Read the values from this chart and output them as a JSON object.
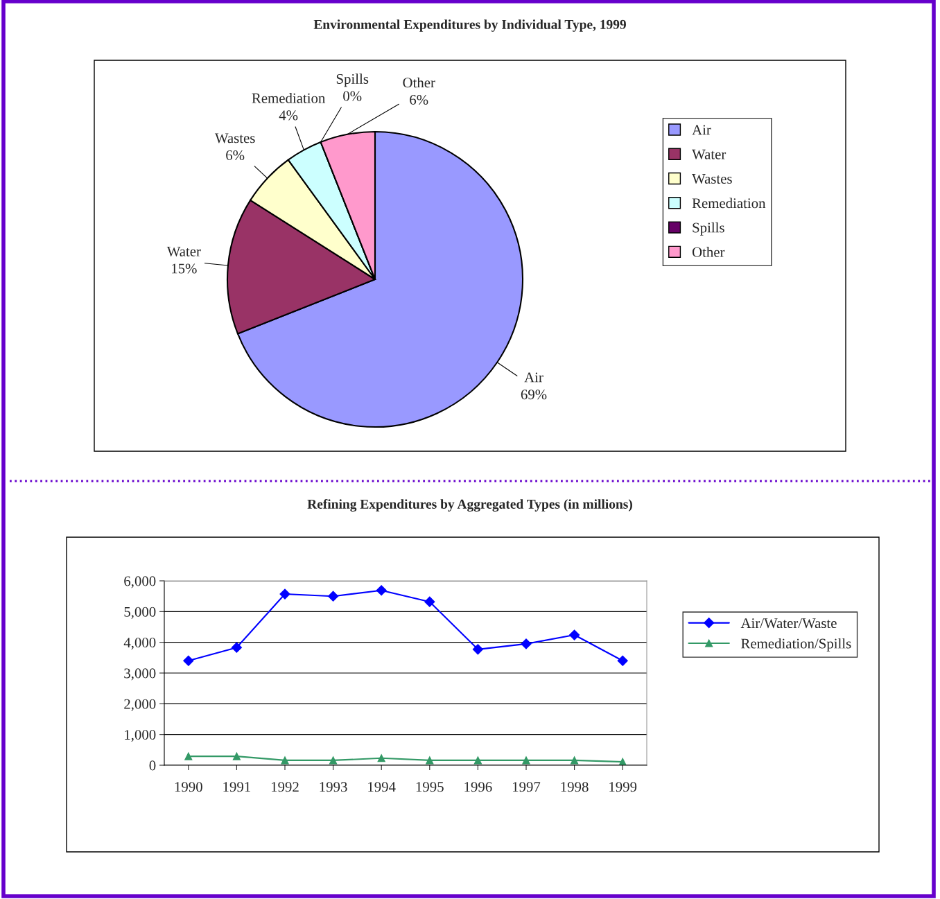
{
  "chart_data": [
    {
      "type": "pie",
      "title": "Environmental Expenditures by Individual Type, 1999",
      "categories": [
        "Air",
        "Water",
        "Wastes",
        "Remediation",
        "Spills",
        "Other"
      ],
      "values": [
        69,
        15,
        6,
        4,
        0,
        6
      ],
      "value_labels": [
        "69%",
        "15%",
        "6%",
        "4%",
        "0%",
        "6%"
      ],
      "colors": [
        "#9999ff",
        "#993366",
        "#ffffcc",
        "#ccffff",
        "#660066",
        "#ff99cc"
      ],
      "legend": "right"
    },
    {
      "type": "line",
      "title": "Refining Expenditures by Aggregated Types (in millions)",
      "categories": [
        "1990",
        "1991",
        "1992",
        "1993",
        "1994",
        "1995",
        "1996",
        "1997",
        "1998",
        "1999"
      ],
      "series": [
        {
          "name": "Air/Water/Waste",
          "color": "#0000ff",
          "marker": "diamond",
          "values": [
            3400,
            3830,
            5570,
            5500,
            5690,
            5320,
            3770,
            3950,
            4240,
            3400
          ]
        },
        {
          "name": "Remediation/Spills",
          "color": "#339966",
          "marker": "triangle",
          "values": [
            290,
            290,
            160,
            160,
            230,
            160,
            160,
            160,
            160,
            110
          ]
        }
      ],
      "ylim": [
        0,
        6000
      ],
      "yticks": [
        {
          "value": 0,
          "label": "0"
        },
        {
          "value": 1000,
          "label": "1,000"
        },
        {
          "value": 2000,
          "label": "2,000"
        },
        {
          "value": 3000,
          "label": "3,000"
        },
        {
          "value": 4000,
          "label": "4,000"
        },
        {
          "value": 5000,
          "label": "5,000"
        },
        {
          "value": 6000,
          "label": "6,000"
        }
      ],
      "grid": "y",
      "legend": "right"
    }
  ]
}
